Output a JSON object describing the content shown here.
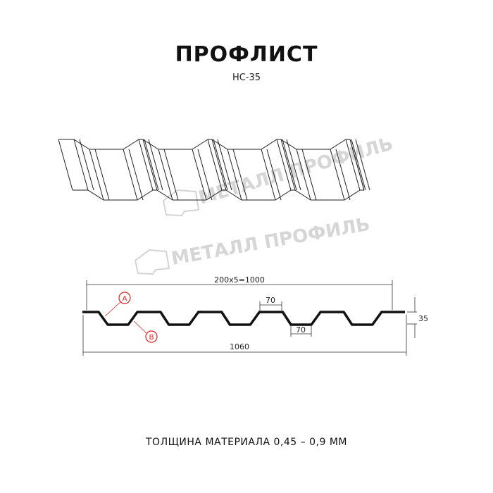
{
  "title": "ПРОФЛИСТ",
  "subtitle": "НС-35",
  "watermark": "МЕТАЛЛ ПРОФИЛЬ",
  "dimensions": {
    "pitch": "200x5=1000",
    "top_width": "70",
    "bottom_width": "70",
    "height": "35",
    "total_width": "1060"
  },
  "callouts": {
    "a": "A",
    "b": "B"
  },
  "footer": "ТОЛЩИНА МАТЕРИАЛА 0,45 – 0,9 ММ",
  "colors": {
    "line": "#1a1a1a",
    "callout": "#e02020",
    "watermark": "#d0d0d0"
  }
}
